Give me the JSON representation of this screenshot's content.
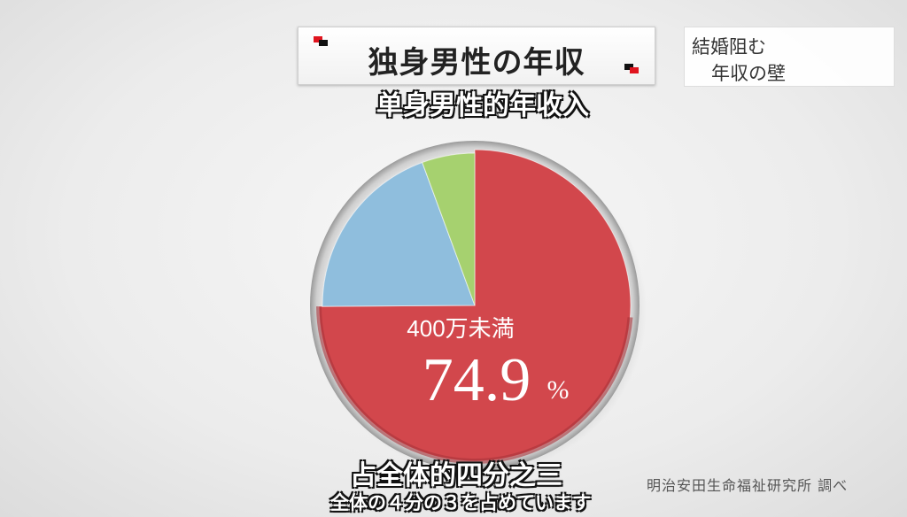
{
  "header": {
    "title": "独身男性の年収",
    "tag_line1": "結婚阻む",
    "tag_line2": "年収の壁"
  },
  "subtitles": {
    "top": "单身男性的年收入",
    "bottom_cn": "占全体的四分之三",
    "bottom_jp": "全体の４分の３を占めています"
  },
  "credit": "明治安田生命福祉研究所 調べ",
  "colors": {
    "red": "#d2474c",
    "red_dark": "#a8333a",
    "blue": "#8fbedd",
    "green": "#a6d16f",
    "rim": "#e4e4e4"
  },
  "chart_data": {
    "type": "pie",
    "title": "独身男性の年収",
    "slices": [
      {
        "label": "400万未満",
        "value": 74.9,
        "color": "#d2474c",
        "value_label": "74.9",
        "unit": "%"
      },
      {
        "label": "",
        "value": 19.5,
        "color": "#8fbedd"
      },
      {
        "label": "",
        "value": 5.6,
        "color": "#a6d16f"
      }
    ],
    "highlighted": "400万未満",
    "start_angle_deg": 0,
    "direction": "clockwise"
  }
}
